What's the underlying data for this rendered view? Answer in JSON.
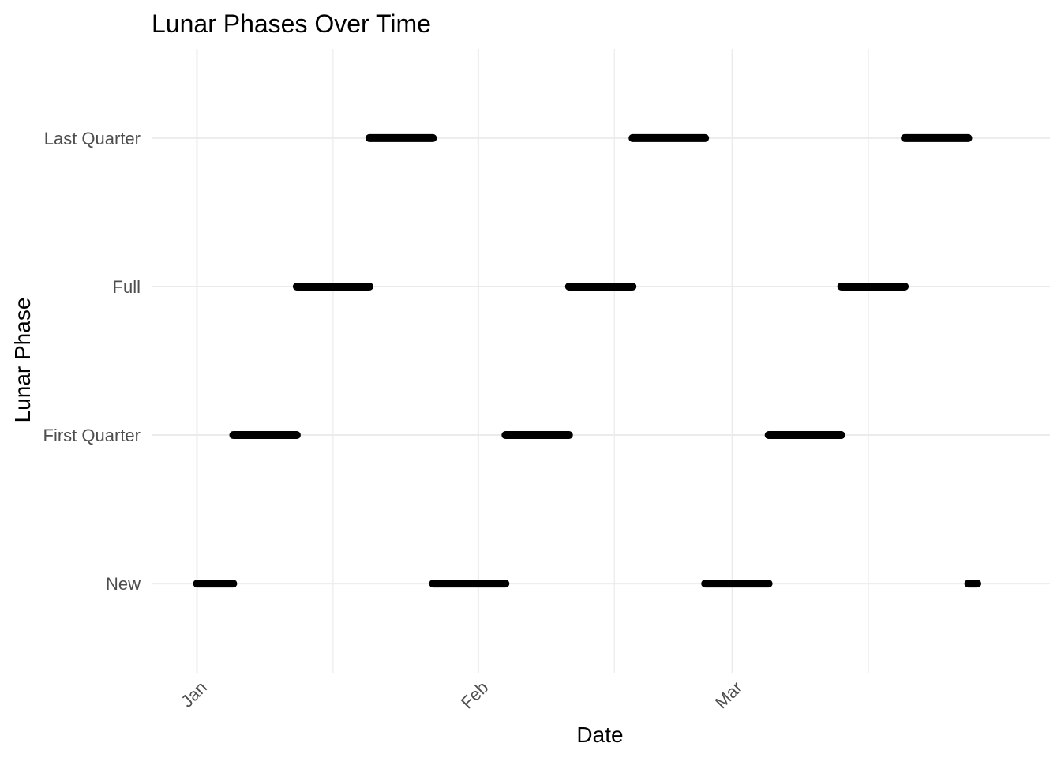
{
  "chart_data": {
    "type": "line",
    "title": "Lunar Phases Over Time",
    "xlabel": "Date",
    "ylabel": "Lunar Phase",
    "x_ticks": [
      "Jan",
      "Feb",
      "Mar"
    ],
    "x_tick_dates": [
      "2023-01-01",
      "2023-02-01",
      "2023-03-01"
    ],
    "x_minor_dates": [
      "2023-01-16",
      "2023-02-16",
      "2023-03-16"
    ],
    "xlim": [
      "2022-12-27",
      "2023-04-05"
    ],
    "categories": [
      "New",
      "First Quarter",
      "Full",
      "Last Quarter"
    ],
    "grid": true,
    "legend": "none",
    "segments": [
      {
        "phase": "New",
        "start": "2023-01-01",
        "end": "2023-01-05"
      },
      {
        "phase": "First Quarter",
        "start": "2023-01-05",
        "end": "2023-01-12"
      },
      {
        "phase": "Full",
        "start": "2023-01-12",
        "end": "2023-01-20"
      },
      {
        "phase": "Last Quarter",
        "start": "2023-01-20",
        "end": "2023-01-27"
      },
      {
        "phase": "New",
        "start": "2023-01-27",
        "end": "2023-02-04"
      },
      {
        "phase": "First Quarter",
        "start": "2023-02-04",
        "end": "2023-02-11"
      },
      {
        "phase": "Full",
        "start": "2023-02-11",
        "end": "2023-02-18"
      },
      {
        "phase": "Last Quarter",
        "start": "2023-02-18",
        "end": "2023-02-26"
      },
      {
        "phase": "New",
        "start": "2023-02-26",
        "end": "2023-03-05"
      },
      {
        "phase": "First Quarter",
        "start": "2023-03-05",
        "end": "2023-03-13"
      },
      {
        "phase": "Full",
        "start": "2023-03-13",
        "end": "2023-03-20"
      },
      {
        "phase": "Last Quarter",
        "start": "2023-03-20",
        "end": "2023-03-27"
      },
      {
        "phase": "New",
        "start": "2023-03-27",
        "end": "2023-03-28"
      }
    ]
  }
}
